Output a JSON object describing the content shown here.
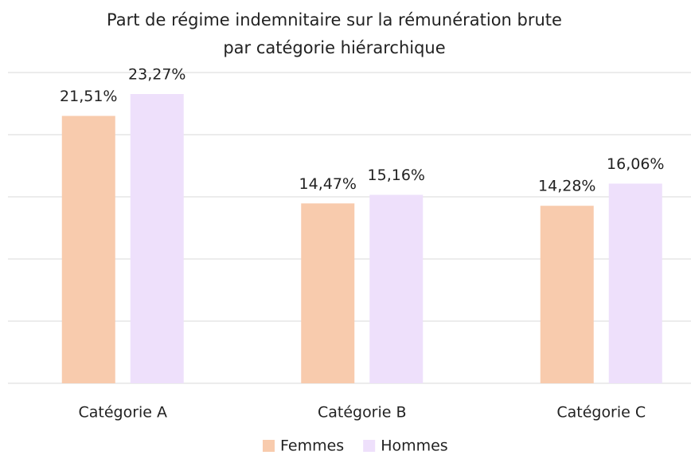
{
  "chart_data": {
    "type": "bar",
    "title": [
      "Part de régime indemnitaire sur la rémunération brute",
      "par catégorie hiérarchique"
    ],
    "categories": [
      "Catégorie A",
      "Catégorie B",
      "Catégorie C"
    ],
    "series": [
      {
        "name": "Femmes",
        "color": "#f8cbad",
        "values": [
          21.51,
          14.47,
          14.28
        ],
        "value_labels": [
          "21,51%",
          "14,47%",
          "14,28%"
        ]
      },
      {
        "name": "Hommes",
        "color": "#eee0fb",
        "values": [
          23.27,
          15.16,
          16.06
        ],
        "value_labels": [
          "23,27%",
          "15,16%",
          "16,06%"
        ]
      }
    ],
    "ylim": [
      0,
      25
    ],
    "yticks": [
      0,
      5,
      10,
      15,
      20,
      25
    ],
    "grid": true,
    "legend": "bottom"
  }
}
